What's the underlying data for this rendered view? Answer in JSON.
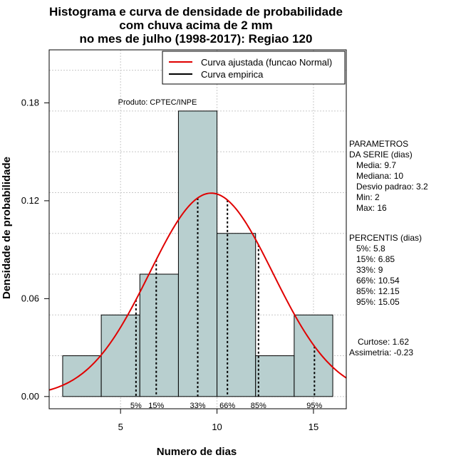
{
  "chart_data": {
    "type": "bar",
    "title_lines": [
      "Histograma e curva de densidade de probabilidade",
      "com chuva acima de 2 mm",
      "no mes de julho (1998-2017): Regiao 120"
    ],
    "xlabel": "Numero de dias",
    "ylabel": "Densidade de probabilidade",
    "xlim": [
      1.3,
      16.7
    ],
    "ylim": [
      -0.0075,
      0.2125
    ],
    "x_ticks": [
      5,
      10,
      15
    ],
    "y_ticks": [
      0.0,
      0.06,
      0.12,
      0.18
    ],
    "y_tick_labels": [
      "0.00",
      "0.06",
      "0.12",
      "0.18"
    ],
    "bins": [
      {
        "start": 2,
        "end": 4,
        "density": 0.025
      },
      {
        "start": 4,
        "end": 6,
        "density": 0.05
      },
      {
        "start": 6,
        "end": 8,
        "density": 0.075
      },
      {
        "start": 8,
        "end": 10,
        "density": 0.175
      },
      {
        "start": 10,
        "end": 12,
        "density": 0.1
      },
      {
        "start": 12,
        "end": 14,
        "density": 0.025
      },
      {
        "start": 14,
        "end": 16,
        "density": 0.05
      }
    ],
    "bar_color": "#b8cfcf",
    "normal_curve": {
      "name": "Curva ajustada (funcao Normal)",
      "mean": 9.7,
      "sd": 3.2,
      "color": "#e00000"
    },
    "empirical_curve": {
      "name": "Curva empirica",
      "color": "#000000"
    },
    "percentile_markers": [
      {
        "label": "5%",
        "x": 5.8
      },
      {
        "label": "15%",
        "x": 6.85
      },
      {
        "label": "33%",
        "x": 9
      },
      {
        "label": "66%",
        "x": 10.54
      },
      {
        "label": "85%",
        "x": 12.15
      },
      {
        "label": "95%",
        "x": 15.05
      }
    ],
    "grid": true,
    "legend_position": "top-right",
    "product_label": "Produto: CPTEC/INPE"
  },
  "side_panel": {
    "parametros": [
      "PARAMETROS",
      "DA SERIE (dias)",
      "   Media: 9.7",
      "   Mediana: 10",
      "   Desvio padrao: 3.2",
      "   Min: 2",
      "   Max: 16"
    ],
    "percentis": [
      "PERCENTIS (dias)",
      "   5%: 5.8",
      "   15%: 6.85",
      "   33%: 9",
      "   66%: 10.54",
      "   85%: 12.15",
      "   95%: 15.05"
    ],
    "extras": [
      "Curtose: 1.62",
      "Assimetria: -0.23"
    ]
  }
}
